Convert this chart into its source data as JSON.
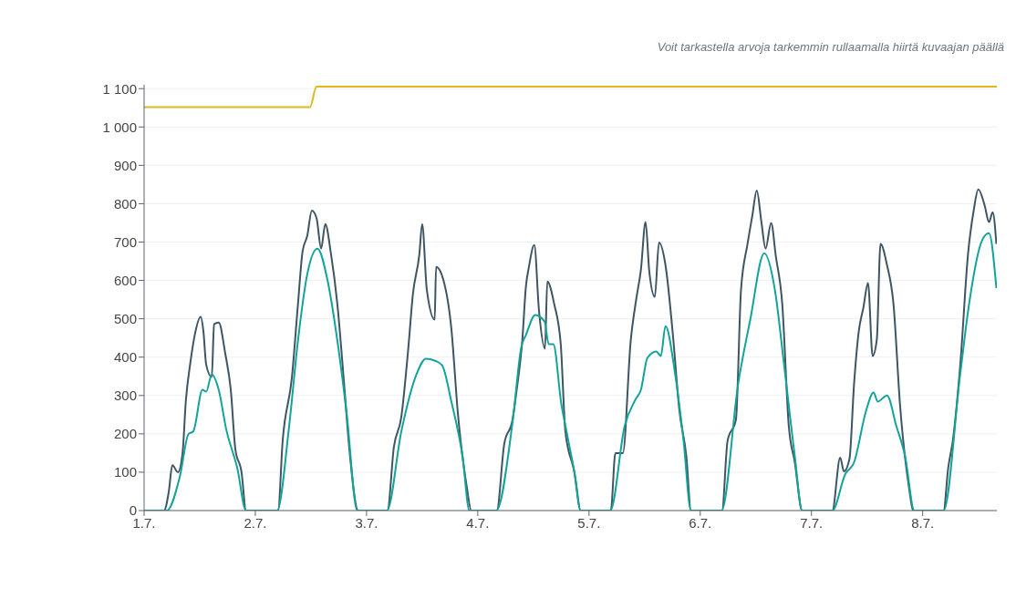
{
  "chart_data": {
    "type": "line",
    "annotations": [
      "Voit tarkastella arvoja tarkemmin rullaamalla hiirtä kuvaajan päällä"
    ],
    "xlim": [
      "--07-01",
      "--07-08T16:00"
    ],
    "xticks": [
      {
        "value": "--07-01",
        "label": "1.7."
      },
      {
        "value": "--07-02",
        "label": "2.7."
      },
      {
        "value": "--07-03",
        "label": "3.7."
      },
      {
        "value": "--07-04",
        "label": "4.7."
      },
      {
        "value": "--07-05",
        "label": "5.7."
      },
      {
        "value": "--07-06",
        "label": "6.7."
      },
      {
        "value": "--07-07",
        "label": "7.7."
      },
      {
        "value": "--07-08",
        "label": "8.7."
      }
    ],
    "ylim": [
      0,
      1110
    ],
    "yticks": [
      0,
      100,
      200,
      300,
      400,
      500,
      600,
      700,
      800,
      900,
      {
        "value": 1000,
        "label": "1 000"
      },
      {
        "value": 1100,
        "label": "1 100"
      }
    ],
    "grid": "y",
    "series": [
      {
        "color": "#e0b81c",
        "x": [
          "--07-01T00:00",
          "--07-02T11:48",
          "--07-02T13:12",
          "--07-08T16:00"
        ],
        "values": [
          1052,
          1052,
          1105,
          1105
        ]
      },
      {
        "color": "#3e5564",
        "x": [
          "--07-01T00:00",
          "--07-01T04:18",
          "--07-01T05:18",
          "--07-01T06:06",
          "--07-01T07:18",
          "--07-01T08:18",
          "--07-01T09:00",
          "--07-01T10:00",
          "--07-01T11:00",
          "--07-01T12:12",
          "--07-01T12:48",
          "--07-01T13:24",
          "--07-01T14:36",
          "--07-01T15:06",
          "--07-01T16:06",
          "--07-01T17:30",
          "--07-01T18:42",
          "--07-01T19:42",
          "--07-01T21:00",
          "--07-01T22:00",
          "--07-02T04:54",
          "--07-02T05:54",
          "--07-02T07:54",
          "--07-02T09:12",
          "--07-02T10:12",
          "--07-02T11:12",
          "--07-02T12:12",
          "--07-02T13:12",
          "--07-02T14:12",
          "--07-02T15:06",
          "--07-02T16:18",
          "--07-02T17:42",
          "--07-02T19:06",
          "--07-02T20:18",
          "--07-02T22:12",
          "--07-03T04:30",
          "--07-03T05:54",
          "--07-03T07:30",
          "--07-03T09:00",
          "--07-03T10:00",
          "--07-03T11:24",
          "--07-03T12:00",
          "--07-03T13:00",
          "--07-03T14:42",
          "--07-03T15:00",
          "--07-03T16:36",
          "--07-03T18:18",
          "--07-03T19:42",
          "--07-03T21:36",
          "--07-03T22:36",
          "--07-04T04:06",
          "--07-04T05:42",
          "--07-04T07:30",
          "--07-04T08:24",
          "--07-04T09:36",
          "--07-04T10:24",
          "--07-04T11:00",
          "--07-04T12:12",
          "--07-04T13:12",
          "--07-04T14:30",
          "--07-04T15:00",
          "--07-04T16:30",
          "--07-04T17:54",
          "--07-04T18:54",
          "--07-04T20:48",
          "--07-04T22:12",
          "--07-05T04:42",
          "--07-05T05:42",
          "--07-05T07:18",
          "--07-05T09:00",
          "--07-05T10:12",
          "--07-05T11:12",
          "--07-05T12:12",
          "--07-05T13:00",
          "--07-05T14:12",
          "--07-05T15:06",
          "--07-05T16:30",
          "--07-05T18:06",
          "--07-05T19:30",
          "--07-05T21:00",
          "--07-05T22:00",
          "--07-06T04:42",
          "--07-06T05:54",
          "--07-06T07:42",
          "--07-06T08:48",
          "--07-06T10:12",
          "--07-06T11:12",
          "--07-06T12:12",
          "--07-06T13:12",
          "--07-06T14:06",
          "--07-06T15:18",
          "--07-06T16:18",
          "--07-06T17:42",
          "--07-06T19:06",
          "--07-06T20:24",
          "--07-06T22:00",
          "--07-07T04:30",
          "--07-07T06:12",
          "--07-07T07:00",
          "--07-07T08:12",
          "--07-07T09:12",
          "--07-07T10:12",
          "--07-07T11:12",
          "--07-07T12:12",
          "--07-07T13:12",
          "--07-07T14:06",
          "--07-07T14:54",
          "--07-07T16:18",
          "--07-07T17:42",
          "--07-07T19:06",
          "--07-07T21:00",
          "--07-07T22:00",
          "--07-08T04:30",
          "--07-08T05:30",
          "--07-08T06:30",
          "--07-08T08:06",
          "--07-08T09:48",
          "--07-08T11:00",
          "--07-08T12:00",
          "--07-08T13:24",
          "--07-08T14:18",
          "--07-08T15:06",
          "--07-08T15:54"
        ],
        "values": [
          0,
          0,
          47,
          118,
          100,
          150,
          285,
          387,
          462,
          505,
          467,
          380,
          348,
          486,
          490,
          410,
          315,
          159,
          102,
          0,
          0,
          182,
          348,
          538,
          676,
          716,
          782,
          763,
          683,
          747,
          671,
          538,
          339,
          159,
          0,
          0,
          166,
          244,
          422,
          564,
          669,
          747,
          576,
          498,
          635,
          600,
          474,
          254,
          64,
          0,
          0,
          173,
          237,
          315,
          443,
          586,
          633,
          692,
          522,
          422,
          597,
          538,
          434,
          206,
          102,
          0,
          0,
          150,
          150,
          443,
          552,
          628,
          752,
          624,
          557,
          699,
          640,
          458,
          261,
          142,
          0,
          0,
          182,
          237,
          576,
          695,
          766,
          834,
          752,
          683,
          750,
          664,
          538,
          221,
          126,
          0,
          0,
          138,
          102,
          135,
          332,
          467,
          529,
          593,
          403,
          446,
          695,
          640,
          538,
          277,
          64,
          0,
          0,
          111,
          182,
          379,
          671,
          782,
          837,
          794,
          752,
          778,
          695
        ]
      },
      {
        "color": "#12a39a",
        "x": [
          "--07-01T00:00",
          "--07-01T04:54",
          "--07-01T07:42",
          "--07-01T09:36",
          "--07-01T10:36",
          "--07-01T12:36",
          "--07-01T13:24",
          "--07-01T14:36",
          "--07-01T16:06",
          "--07-01T17:42",
          "--07-01T20:06",
          "--07-01T22:00",
          "--07-02T04:42",
          "--07-02T07:18",
          "--07-02T09:12",
          "--07-02T11:12",
          "--07-02T13:24",
          "--07-02T15:42",
          "--07-02T17:42",
          "--07-02T19:42",
          "--07-02T22:00",
          "--07-03T04:24",
          "--07-03T07:30",
          "--07-03T10:48",
          "--07-03T12:48",
          "--07-03T14:42",
          "--07-03T16:18",
          "--07-03T18:18",
          "--07-03T20:42",
          "--07-03T22:12",
          "--07-04T04:00",
          "--07-04T07:30",
          "--07-04T09:24",
          "--07-04T10:24",
          "--07-04T12:24",
          "--07-04T14:24",
          "--07-04T15:18",
          "--07-04T16:18",
          "--07-04T18:00",
          "--07-04T19:18",
          "--07-04T21:00",
          "--07-04T22:12",
          "--07-05T04:36",
          "--07-05T07:42",
          "--07-05T10:00",
          "--07-05T11:12",
          "--07-05T12:36",
          "--07-05T14:30",
          "--07-05T15:30",
          "--07-05T16:30",
          "--07-05T18:30",
          "--07-05T20:24",
          "--07-05T22:00",
          "--07-06T04:36",
          "--07-06T08:12",
          "--07-06T10:48",
          "--07-06T13:48",
          "--07-06T16:06",
          "--07-06T18:06",
          "--07-06T20:24",
          "--07-06T22:00",
          "--07-07T04:30",
          "--07-07T07:18",
          "--07-07T09:12",
          "--07-07T11:48",
          "--07-07T13:24",
          "--07-07T14:18",
          "--07-07T16:18",
          "--07-07T18:18",
          "--07-07T20:12",
          "--07-07T22:12",
          "--07-08T04:30",
          "--07-08T08:06",
          "--07-08T10:00",
          "--07-08T12:48",
          "--07-08T14:18",
          "--07-08T15:54"
        ],
        "values": [
          0,
          0,
          88,
          200,
          206,
          315,
          310,
          355,
          315,
          213,
          111,
          0,
          0,
          221,
          443,
          616,
          683,
          593,
          443,
          254,
          0,
          0,
          206,
          356,
          396,
          391,
          379,
          284,
          142,
          0,
          0,
          230,
          427,
          458,
          510,
          493,
          434,
          434,
          280,
          197,
          90,
          0,
          0,
          221,
          289,
          315,
          398,
          415,
          403,
          481,
          363,
          182,
          0,
          0,
          332,
          498,
          671,
          576,
          379,
          142,
          0,
          0,
          95,
          126,
          261,
          308,
          284,
          300,
          221,
          142,
          0,
          0,
          356,
          538,
          704,
          723,
          580
        ]
      }
    ]
  }
}
